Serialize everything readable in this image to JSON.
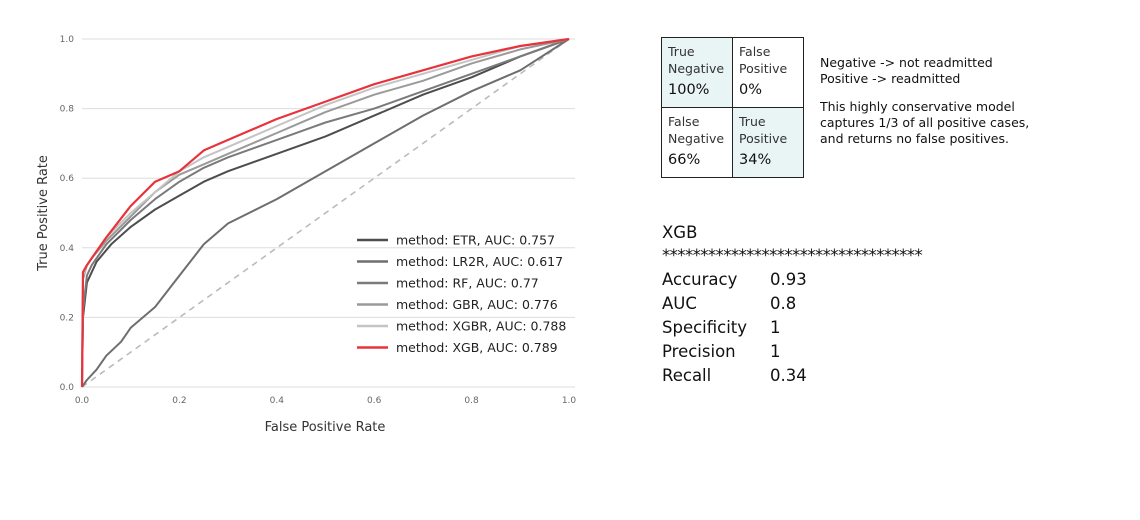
{
  "chart_data": {
    "type": "line",
    "xlabel": "False Positive Rate",
    "ylabel": "True Positive Rate",
    "xlim": [
      0,
      1
    ],
    "ylim": [
      0,
      1
    ],
    "xticks": [
      "0.0",
      "0.2",
      "0.4",
      "0.6",
      "0.8",
      "1.0"
    ],
    "yticks": [
      "0.0",
      "0.2",
      "0.4",
      "0.6",
      "0.8",
      "1.0"
    ],
    "grid": "horizontal",
    "legend_position": "lower-right",
    "diagonal_reference": true,
    "series": [
      {
        "name": "method: ETR, AUC: 0.757",
        "color": "#4d4d4d",
        "x": [
          0,
          0.002,
          0.01,
          0.03,
          0.06,
          0.1,
          0.15,
          0.2,
          0.25,
          0.3,
          0.4,
          0.5,
          0.6,
          0.7,
          0.8,
          0.9,
          1.0
        ],
        "y": [
          0,
          0.2,
          0.3,
          0.36,
          0.41,
          0.46,
          0.51,
          0.55,
          0.59,
          0.62,
          0.67,
          0.72,
          0.78,
          0.84,
          0.89,
          0.95,
          1.0
        ]
      },
      {
        "name": "method: LR2R, AUC: 0.617",
        "color": "#6e6e6e",
        "x": [
          0,
          0.01,
          0.03,
          0.05,
          0.08,
          0.1,
          0.15,
          0.2,
          0.25,
          0.3,
          0.4,
          0.5,
          0.6,
          0.7,
          0.8,
          0.9,
          1.0
        ],
        "y": [
          0,
          0.02,
          0.05,
          0.09,
          0.13,
          0.17,
          0.23,
          0.32,
          0.41,
          0.47,
          0.54,
          0.62,
          0.7,
          0.78,
          0.85,
          0.91,
          1.0
        ]
      },
      {
        "name": "method: RF, AUC: 0.77",
        "color": "#7a7a7a",
        "x": [
          0,
          0.002,
          0.01,
          0.02,
          0.05,
          0.1,
          0.15,
          0.2,
          0.25,
          0.3,
          0.4,
          0.5,
          0.6,
          0.7,
          0.8,
          0.9,
          1.0
        ],
        "y": [
          0,
          0.22,
          0.32,
          0.35,
          0.41,
          0.48,
          0.54,
          0.59,
          0.63,
          0.66,
          0.71,
          0.76,
          0.8,
          0.85,
          0.9,
          0.95,
          1.0
        ]
      },
      {
        "name": "method: GBR, AUC: 0.776",
        "color": "#9a9a9a",
        "x": [
          0,
          0.002,
          0.01,
          0.02,
          0.05,
          0.1,
          0.15,
          0.2,
          0.25,
          0.3,
          0.4,
          0.5,
          0.6,
          0.7,
          0.8,
          0.9,
          1.0
        ],
        "y": [
          0,
          0.31,
          0.35,
          0.37,
          0.42,
          0.49,
          0.56,
          0.61,
          0.64,
          0.67,
          0.73,
          0.79,
          0.84,
          0.88,
          0.93,
          0.97,
          1.0
        ]
      },
      {
        "name": "method: XGBR, AUC: 0.788",
        "color": "#c4c4c4",
        "x": [
          0,
          0.002,
          0.01,
          0.02,
          0.05,
          0.1,
          0.15,
          0.2,
          0.25,
          0.3,
          0.4,
          0.5,
          0.6,
          0.7,
          0.8,
          0.9,
          1.0
        ],
        "y": [
          0,
          0.32,
          0.35,
          0.37,
          0.43,
          0.5,
          0.56,
          0.62,
          0.66,
          0.69,
          0.75,
          0.81,
          0.86,
          0.9,
          0.94,
          0.98,
          1.0
        ]
      },
      {
        "name": "method: XGB, AUC: 0.789",
        "color": "#e8333a",
        "x": [
          0,
          0.002,
          0.01,
          0.02,
          0.05,
          0.1,
          0.15,
          0.2,
          0.25,
          0.3,
          0.4,
          0.5,
          0.6,
          0.7,
          0.8,
          0.9,
          1.0
        ],
        "y": [
          0,
          0.33,
          0.35,
          0.37,
          0.43,
          0.52,
          0.59,
          0.62,
          0.68,
          0.71,
          0.77,
          0.82,
          0.87,
          0.91,
          0.95,
          0.98,
          1.0
        ]
      }
    ]
  },
  "confusion_matrix": {
    "cells": [
      {
        "label": "True Negative",
        "value": "100%",
        "highlight": true
      },
      {
        "label": "False Positive",
        "value": "0%",
        "highlight": false
      },
      {
        "label": "False Negative",
        "value": "66%",
        "highlight": false
      },
      {
        "label": "True Positive",
        "value": "34%",
        "highlight": true
      }
    ]
  },
  "notes": {
    "line1": "Negative -> not readmitted",
    "line2": "Positive -> readmitted",
    "paragraph": "This highly conservative model captures 1/3 of all positive cases, and returns no false positives."
  },
  "metrics": {
    "title": "XGB",
    "separator": "**********************************",
    "rows": [
      {
        "name": "Accuracy",
        "value": "0.93"
      },
      {
        "name": "AUC",
        "value": "0.8"
      },
      {
        "name": "Specificity",
        "value": "1"
      },
      {
        "name": "Precision",
        "value": "1"
      },
      {
        "name": "Recall",
        "value": "0.34"
      }
    ]
  }
}
